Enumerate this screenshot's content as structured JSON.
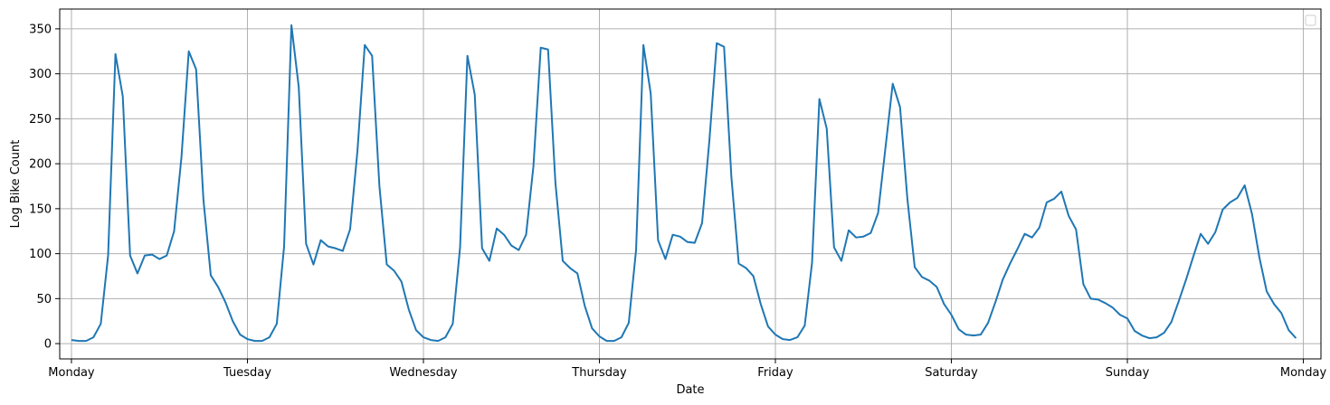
{
  "chart_data": {
    "type": "line",
    "title": "",
    "xlabel": "Date",
    "ylabel": "Log Bike Count",
    "x_ticks": [
      "Monday",
      "Tuesday",
      "Wednesday",
      "Thursday",
      "Friday",
      "Saturday",
      "Sunday",
      "Monday"
    ],
    "y_ticks": [
      0,
      50,
      100,
      150,
      200,
      250,
      300,
      350
    ],
    "xlim": [
      -1.6,
      170.4
    ],
    "ylim": [
      -17,
      372
    ],
    "grid": true,
    "legend": "top-right",
    "colors": {
      "series": "#1f77b4",
      "grid": "#b0b0b0"
    },
    "series": [
      {
        "values": [
          4,
          3,
          3,
          7,
          22,
          98,
          322,
          275,
          98,
          78,
          98,
          99,
          94,
          98,
          125,
          207,
          325,
          305,
          160,
          76,
          63,
          46,
          25,
          10,
          5,
          3,
          3,
          7,
          22,
          108,
          354,
          285,
          111,
          88,
          115,
          108,
          106,
          103,
          127,
          214,
          332,
          320,
          175,
          88,
          81,
          69,
          38,
          15,
          7,
          4,
          3,
          7,
          22,
          107,
          320,
          277,
          106,
          92,
          128,
          121,
          109,
          104,
          121,
          197,
          329,
          327,
          179,
          92,
          84,
          78,
          42,
          17,
          8,
          3,
          3,
          7,
          23,
          104,
          332,
          278,
          115,
          94,
          121,
          119,
          113,
          112,
          134,
          226,
          334,
          330,
          185,
          89,
          84,
          75,
          44,
          19,
          10,
          5,
          4,
          7,
          20,
          90,
          272,
          239,
          107,
          92,
          126,
          118,
          119,
          123,
          145,
          217,
          289,
          263,
          161,
          85,
          74,
          70,
          63,
          44,
          32,
          16,
          10,
          9,
          10,
          23,
          46,
          71,
          89,
          105,
          122,
          118,
          129,
          157,
          161,
          169,
          142,
          127,
          66,
          50,
          49,
          45,
          40,
          32,
          28,
          14,
          9,
          6,
          7,
          12,
          24,
          47,
          71,
          97,
          122,
          111,
          124,
          149,
          157,
          162,
          176,
          144,
          96,
          58,
          44,
          34,
          15,
          6
        ]
      }
    ]
  }
}
